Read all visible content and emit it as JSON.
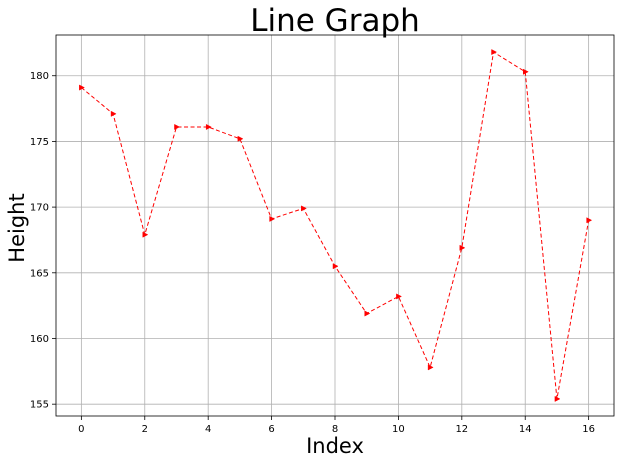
{
  "chart_data": {
    "type": "line",
    "title": "Line Graph",
    "xlabel": "Index",
    "ylabel": "Height",
    "x": [
      0,
      1,
      2,
      3,
      4,
      5,
      6,
      7,
      8,
      9,
      10,
      11,
      12,
      13,
      14,
      15,
      16
    ],
    "series": [
      {
        "values": [
          179.1,
          177.1,
          167.9,
          176.1,
          176.1,
          175.2,
          169.1,
          169.9,
          165.5,
          161.9,
          163.2,
          157.8,
          166.9,
          181.8,
          180.3,
          155.4,
          169.0
        ]
      }
    ],
    "xticks": [
      "0",
      "2",
      "4",
      "6",
      "8",
      "10",
      "12",
      "14",
      "16"
    ],
    "yticks": [
      "155",
      "160",
      "165",
      "170",
      "175",
      "180"
    ],
    "xlim": [
      -0.8,
      16.8
    ],
    "ylim": [
      154.1,
      183.1
    ],
    "grid": true,
    "line_color": "#ff0000",
    "line_style": "dashed",
    "marker": "triangle-right"
  }
}
